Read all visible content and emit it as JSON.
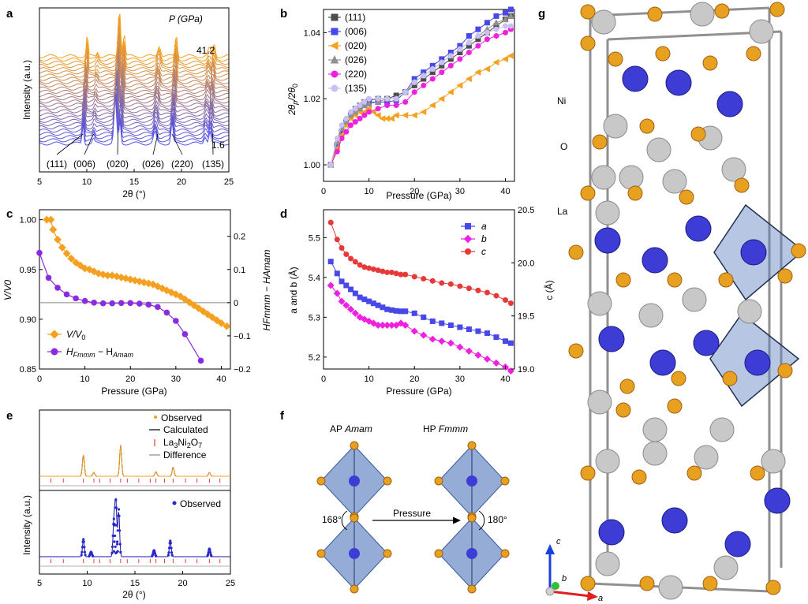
{
  "panel_labels": {
    "a": "a",
    "b": "b",
    "c": "c",
    "d": "d",
    "e": "e",
    "f": "f",
    "g": "g"
  },
  "colors": {
    "orange": "#f5a020",
    "blue": "#4848e8",
    "violet": "#8a2be2",
    "magenta": "#f020e0",
    "red": "#e83838",
    "grey": "#4d4d4d",
    "lavender": "#c8c0f0",
    "grey_triangle": "#909090",
    "ni_atom": "#3d3dd6",
    "o_atom": "#e8a020",
    "la_atom": "#c8c8c8",
    "octahedron": "#6080c0"
  },
  "chart_data": [
    {
      "panel": "a",
      "type": "line",
      "title": "",
      "annotation_title": "P (GPa)",
      "pressure_top": "41.2",
      "pressure_bottom": "1.6",
      "xlabel": "2θ (°)",
      "ylabel": "Intensity (a.u.)",
      "xlim": [
        5,
        25
      ],
      "xticks": [
        "5",
        "10",
        "15",
        "20",
        "25"
      ],
      "n_traces": 28,
      "peaks": [
        9.6,
        10.7,
        13.0,
        13.5,
        17.2,
        19.0,
        22.5,
        23.0
      ],
      "hkl_labels": [
        {
          "label": "(111)",
          "x": 9.6
        },
        {
          "label": "(006)",
          "x": 10.7
        },
        {
          "label": "(020)",
          "x": 13.3
        },
        {
          "label": "(026)",
          "x": 17.5
        },
        {
          "label": "(220)",
          "x": 19.0
        },
        {
          "label": "(135)",
          "x": 23.3
        }
      ]
    },
    {
      "panel": "b",
      "type": "line",
      "xlabel": "Pressure (GPa)",
      "ylabel": "2θp/2θ0",
      "ylabel_main": "2θ",
      "ylabel_sub_p": "p",
      "ylabel_slash": "/2θ",
      "ylabel_sub_0": "0",
      "xlim": [
        0,
        42
      ],
      "ylim": [
        0.995,
        1.047
      ],
      "xticks": [
        "0",
        "10",
        "20",
        "30",
        "40"
      ],
      "yticks": [
        "1.00",
        "1.02",
        "1.04"
      ],
      "series": [
        {
          "name": "(111)",
          "color": "#4d4d4d",
          "marker": "square",
          "x": [
            1.6,
            3,
            4,
            5,
            6,
            7,
            8,
            9,
            10,
            12,
            14,
            16,
            18,
            20,
            22,
            24,
            26,
            28,
            30,
            32,
            34,
            36,
            38,
            40,
            41.2
          ],
          "y": [
            1.0,
            1.006,
            1.01,
            1.013,
            1.015,
            1.017,
            1.018,
            1.019,
            1.0195,
            1.02,
            1.02,
            1.021,
            1.022,
            1.024,
            1.026,
            1.028,
            1.03,
            1.032,
            1.034,
            1.036,
            1.038,
            1.04,
            1.042,
            1.044,
            1.045
          ]
        },
        {
          "name": "(006)",
          "color": "#4848e8",
          "marker": "square",
          "x": [
            1.6,
            3,
            4,
            5,
            6,
            7,
            8,
            9,
            10,
            12,
            14,
            16,
            18,
            20,
            22,
            24,
            26,
            28,
            30,
            32,
            34,
            36,
            38,
            40,
            41.2
          ],
          "y": [
            1.0,
            1.006,
            1.01,
            1.013,
            1.015,
            1.016,
            1.017,
            1.018,
            1.019,
            1.019,
            1.019,
            1.0195,
            1.022,
            1.026,
            1.028,
            1.03,
            1.032,
            1.034,
            1.036,
            1.039,
            1.041,
            1.043,
            1.045,
            1.046,
            1.047
          ]
        },
        {
          "name": "(020)",
          "color": "#f5a020",
          "marker": "triangle-left",
          "x": [
            1.6,
            3,
            4,
            5,
            6,
            7,
            8,
            9,
            10,
            11,
            12,
            13,
            14,
            15,
            16,
            18,
            20,
            22,
            24,
            26,
            28,
            30,
            32,
            34,
            36,
            38,
            40,
            41.2
          ],
          "y": [
            1.0,
            1.005,
            1.009,
            1.012,
            1.014,
            1.015,
            1.016,
            1.016,
            1.017,
            1.016,
            1.015,
            1.014,
            1.014,
            1.014,
            1.015,
            1.015,
            1.015,
            1.016,
            1.018,
            1.02,
            1.022,
            1.024,
            1.026,
            1.028,
            1.029,
            1.031,
            1.032,
            1.033
          ]
        },
        {
          "name": "(026)",
          "color": "#909090",
          "marker": "triangle-up",
          "x": [
            1.6,
            3,
            4,
            5,
            6,
            7,
            8,
            9,
            10,
            12,
            14,
            16,
            18,
            20,
            22,
            24,
            26,
            28,
            30,
            32,
            34,
            36,
            38,
            40,
            41.2
          ],
          "y": [
            1.0,
            1.007,
            1.011,
            1.013,
            1.015,
            1.016,
            1.017,
            1.018,
            1.0185,
            1.019,
            1.02,
            1.02,
            1.022,
            1.025,
            1.027,
            1.029,
            1.031,
            1.033,
            1.035,
            1.037,
            1.039,
            1.041,
            1.043,
            1.044,
            1.045
          ]
        },
        {
          "name": "(220)",
          "color": "#f020e0",
          "marker": "circle",
          "x": [
            1.6,
            3,
            4,
            5,
            6,
            7,
            8,
            9,
            10,
            12,
            14,
            16,
            18,
            20,
            22,
            24,
            26,
            28,
            30,
            32,
            34,
            36,
            38,
            40,
            41.2
          ],
          "y": [
            1.0,
            1.004,
            1.008,
            1.01,
            1.012,
            1.013,
            1.014,
            1.015,
            1.016,
            1.017,
            1.018,
            1.018,
            1.019,
            1.022,
            1.024,
            1.026,
            1.028,
            1.03,
            1.032,
            1.034,
            1.036,
            1.038,
            1.039,
            1.04,
            1.041
          ]
        },
        {
          "name": "(135)",
          "color": "#c8c0f0",
          "marker": "circle",
          "x": [
            1.6,
            3,
            4,
            5,
            6,
            7,
            8,
            9,
            10,
            12,
            14,
            16,
            18,
            20,
            22,
            24,
            26,
            28,
            30,
            32,
            34,
            36,
            38,
            40,
            41.2
          ],
          "y": [
            1.0,
            1.008,
            1.012,
            1.014,
            1.016,
            1.017,
            1.018,
            1.019,
            1.02,
            1.02,
            1.02,
            1.02,
            1.022,
            1.025,
            1.027,
            1.029,
            1.031,
            1.033,
            1.035,
            1.037,
            1.039,
            1.04,
            1.041,
            1.042,
            1.042
          ]
        }
      ]
    },
    {
      "panel": "c",
      "type": "line",
      "xlabel": "Pressure (GPa)",
      "ylabel_left": "V/V0",
      "ylabel_right": "HFmmm − HAmam",
      "xlim": [
        0,
        42
      ],
      "ylim_left": [
        0.85,
        1.01
      ],
      "ylim_right": [
        -0.2,
        0.28
      ],
      "xticks": [
        "0",
        "10",
        "20",
        "30",
        "40"
      ],
      "yticks_left": [
        "0.85",
        "0.90",
        "0.95",
        "1.00"
      ],
      "yticks_right": [
        "−0.2",
        "−0.1",
        "0",
        "0.1",
        "0.2"
      ],
      "legend": [
        {
          "main": "V/V",
          "sub": "0"
        },
        {
          "main": "H",
          "sub": "Fmmm",
          "mid": " − H",
          "sub2": "Amam"
        }
      ],
      "series": [
        {
          "name": "V/V0",
          "axis": "left",
          "color": "#f5a020",
          "marker": "diamond",
          "x": [
            1.6,
            2.5,
            3,
            4,
            5,
            6,
            7,
            8,
            9,
            10,
            11,
            12,
            13,
            14,
            15,
            16,
            17,
            18,
            19,
            20,
            21,
            22,
            23,
            24,
            25,
            26,
            27,
            28,
            29,
            30,
            31,
            32,
            33,
            34,
            35,
            36,
            37,
            38,
            39,
            40,
            41.2
          ],
          "y": [
            1.0,
            1.0,
            0.99,
            0.98,
            0.972,
            0.966,
            0.961,
            0.957,
            0.954,
            0.951,
            0.95,
            0.948,
            0.946,
            0.945,
            0.944,
            0.944,
            0.943,
            0.942,
            0.941,
            0.94,
            0.939,
            0.938,
            0.937,
            0.936,
            0.935,
            0.933,
            0.931,
            0.929,
            0.927,
            0.925,
            0.923,
            0.92,
            0.917,
            0.914,
            0.911,
            0.908,
            0.905,
            0.902,
            0.899,
            0.896,
            0.893
          ]
        },
        {
          "name": "HFmmm − HAmam",
          "axis": "right",
          "color": "#8a2be2",
          "marker": "circle",
          "x": [
            0,
            2,
            4,
            6,
            8,
            10,
            12,
            14,
            16,
            18,
            20,
            22,
            24,
            26,
            28,
            30,
            32,
            35.5
          ],
          "y": [
            0.15,
            0.075,
            0.045,
            0.025,
            0.013,
            0.005,
            0.0,
            -0.002,
            -0.002,
            -0.001,
            -0.001,
            -0.003,
            -0.006,
            -0.013,
            -0.03,
            -0.055,
            -0.095,
            -0.175
          ]
        }
      ],
      "reference_line": 0
    },
    {
      "panel": "d",
      "type": "scatter",
      "xlabel": "Pressure (GPa)",
      "ylabel_left": "a and b (Å)",
      "ylabel_right": "c (Å)",
      "xlim": [
        0,
        42
      ],
      "ylim_left": [
        5.17,
        5.57
      ],
      "ylim_right": [
        19.0,
        20.5
      ],
      "xticks": [
        "0",
        "10",
        "20",
        "30",
        "40"
      ],
      "yticks_left": [
        "5.2",
        "5.3",
        "5.4",
        "5.5"
      ],
      "yticks_right": [
        "19.0",
        "19.5",
        "20.0",
        "20.5"
      ],
      "series": [
        {
          "name": "a",
          "axis": "left",
          "color": "#4848e8",
          "marker": "square",
          "x": [
            1.6,
            3,
            4,
            5,
            6,
            7,
            8,
            9,
            10,
            11,
            12,
            13,
            14,
            15,
            16,
            17,
            18,
            20,
            22,
            24,
            26,
            28,
            30,
            32,
            34,
            36,
            38,
            40,
            41.2
          ],
          "y": [
            5.44,
            5.41,
            5.39,
            5.38,
            5.37,
            5.36,
            5.35,
            5.345,
            5.34,
            5.335,
            5.33,
            5.325,
            5.32,
            5.318,
            5.316,
            5.315,
            5.315,
            5.31,
            5.3,
            5.29,
            5.285,
            5.28,
            5.275,
            5.27,
            5.265,
            5.26,
            5.25,
            5.24,
            5.235
          ]
        },
        {
          "name": "b",
          "axis": "left",
          "color": "#f020e0",
          "marker": "diamond",
          "x": [
            1.6,
            3,
            4,
            5,
            6,
            7,
            8,
            9,
            10,
            11,
            12,
            13,
            14,
            15,
            16,
            17,
            18,
            20,
            22,
            24,
            26,
            28,
            30,
            32,
            34,
            36,
            38,
            40,
            41.2
          ],
          "y": [
            5.38,
            5.36,
            5.34,
            5.33,
            5.32,
            5.31,
            5.3,
            5.295,
            5.29,
            5.285,
            5.28,
            5.28,
            5.28,
            5.28,
            5.28,
            5.285,
            5.28,
            5.265,
            5.255,
            5.245,
            5.24,
            5.235,
            5.225,
            5.215,
            5.205,
            5.195,
            5.185,
            5.175,
            5.165
          ]
        },
        {
          "name": "c",
          "axis": "right",
          "color": "#e83838",
          "marker": "circle",
          "x": [
            1.6,
            3,
            4,
            5,
            6,
            7,
            8,
            9,
            10,
            11,
            12,
            13,
            14,
            15,
            16,
            17,
            18,
            20,
            22,
            24,
            26,
            28,
            30,
            32,
            34,
            36,
            38,
            40,
            41.2
          ],
          "y": [
            20.38,
            20.22,
            20.14,
            20.08,
            20.04,
            20.01,
            19.98,
            19.96,
            19.95,
            19.94,
            19.93,
            19.92,
            19.91,
            19.91,
            19.9,
            19.89,
            19.89,
            19.87,
            19.85,
            19.83,
            19.81,
            19.8,
            19.78,
            19.76,
            19.74,
            19.72,
            19.69,
            19.65,
            19.62
          ]
        }
      ]
    },
    {
      "panel": "e",
      "type": "line",
      "xlabel": "2θ (°)",
      "ylabel": "Intensity (a.u.)",
      "xlim": [
        5,
        25
      ],
      "xticks": [
        "5",
        "10",
        "15",
        "20",
        "25"
      ],
      "legend_top": [
        {
          "label": "Observed",
          "color": "#f5a020",
          "marker": "dot"
        },
        {
          "label": "Calculated",
          "color": "#000000",
          "marker": "line"
        },
        {
          "main": "La",
          "s1": "3",
          "m2": "Ni",
          "s2": "2",
          "m3": "O",
          "s3": "7",
          "label": "La3Ni2O7",
          "color": "#e83838",
          "marker": "tick"
        },
        {
          "label": "Difference",
          "color": "#888888",
          "marker": "line"
        }
      ],
      "legend_bottom": [
        {
          "label": "Observed",
          "color": "#2828c8",
          "marker": "dot"
        }
      ],
      "top_peaks": [
        9.6,
        10.7,
        13.5,
        17.2,
        19.0,
        22.8
      ],
      "bottom_peaks": [
        9.6,
        10.4,
        12.8,
        13.0,
        13.3,
        17.0,
        18.7,
        22.8
      ]
    }
  ],
  "panel_f": {
    "label_ap": "AP",
    "label_ap_sg": "Amam",
    "label_hp": "HP",
    "label_hp_sg": "Fmmm",
    "angle_ap": "168°",
    "angle_hp": "180°",
    "arrow_label": "Pressure"
  },
  "panel_g": {
    "atom_labels": {
      "ni": "Ni",
      "o": "O",
      "la": "La"
    },
    "axes": {
      "a": "a",
      "b": "b",
      "c": "c"
    }
  }
}
